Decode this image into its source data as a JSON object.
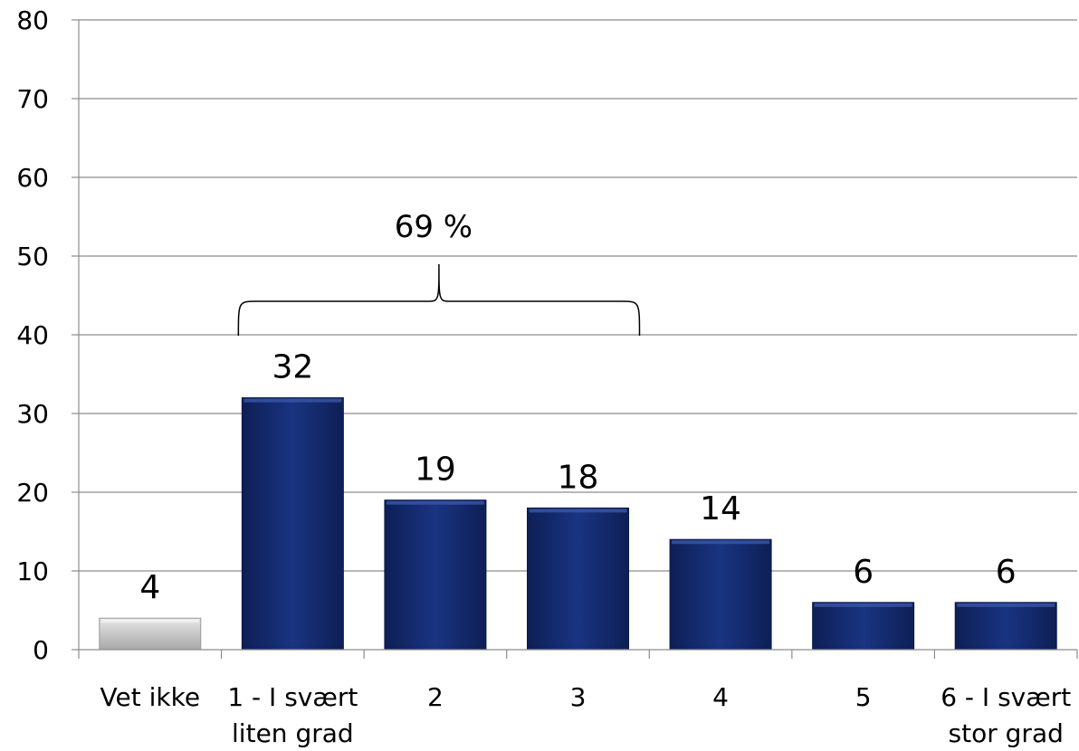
{
  "chart_data": {
    "type": "bar",
    "categories": [
      [
        "Vet ikke"
      ],
      [
        "1 - I svært",
        "liten grad"
      ],
      [
        "2"
      ],
      [
        "3"
      ],
      [
        "4"
      ],
      [
        "5"
      ],
      [
        "6 - I svært",
        "stor grad"
      ]
    ],
    "values": [
      4,
      32,
      19,
      18,
      14,
      6,
      6
    ],
    "data_labels": [
      "4",
      "32",
      "19",
      "18",
      "14",
      "6",
      "6"
    ],
    "bar_colors": [
      "#c4c4c4",
      "#13296b",
      "#13296b",
      "#13296b",
      "#13296b",
      "#13296b",
      "#13296b"
    ],
    "ylim": [
      0,
      80
    ],
    "yticks": [
      0,
      10,
      20,
      30,
      40,
      50,
      60,
      70,
      80
    ],
    "grid": true,
    "title": "",
    "xlabel": "",
    "ylabel": "",
    "annotation": {
      "text": "69 %",
      "brace_from_category": 1,
      "brace_to_category": 3
    }
  }
}
